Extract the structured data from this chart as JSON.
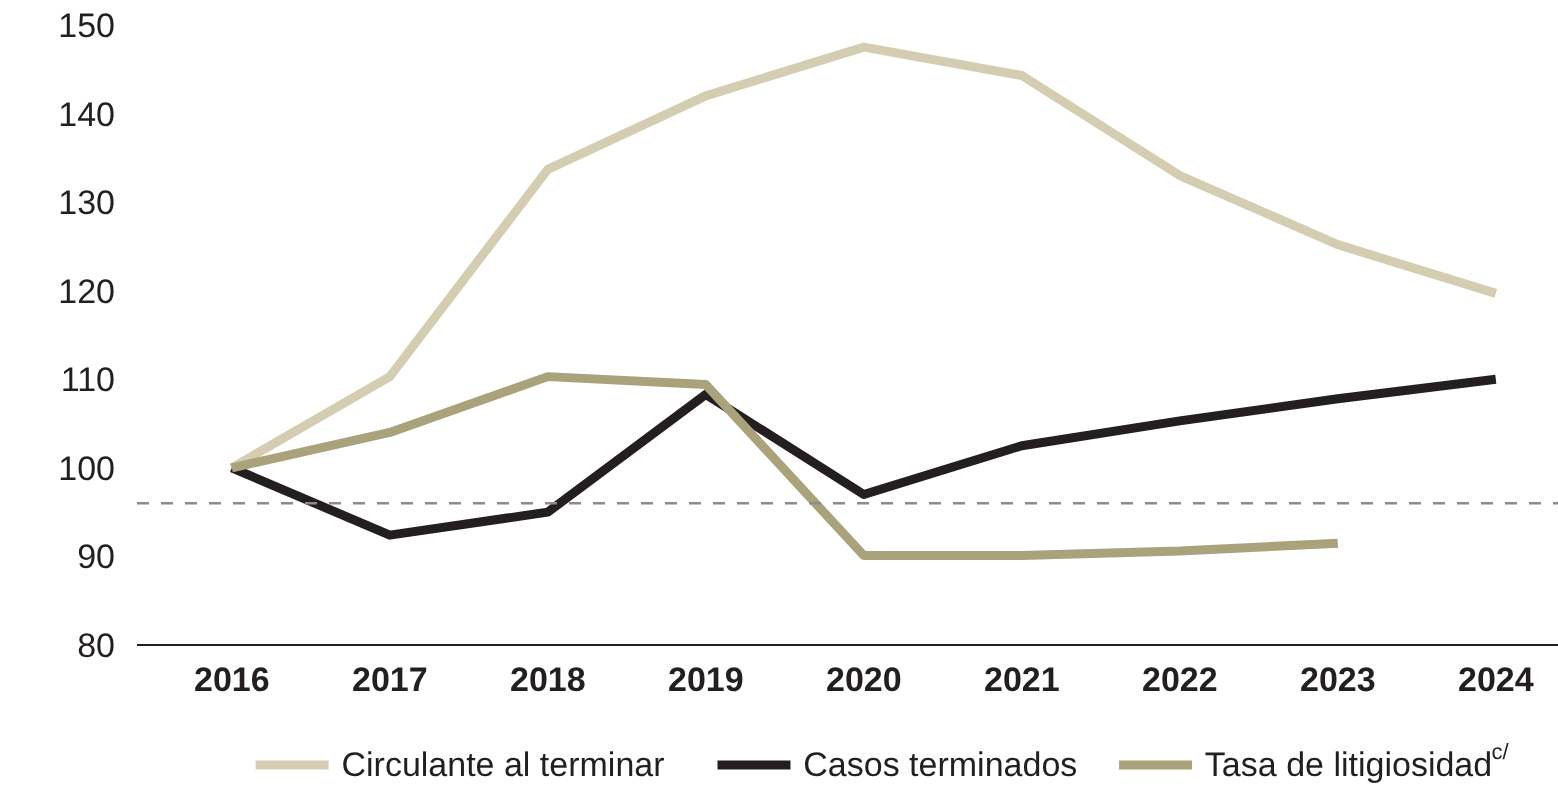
{
  "chart_data": {
    "type": "line",
    "x": [
      2016,
      2017,
      2018,
      2019,
      2020,
      2021,
      2022,
      2023,
      2024
    ],
    "xlim": [
      2015.4,
      2024.4
    ],
    "xticks": [
      2016,
      2017,
      2018,
      2019,
      2020,
      2021,
      2022,
      2023,
      2024
    ],
    "ylim": [
      80,
      150
    ],
    "yticks": [
      80,
      90,
      100,
      110,
      120,
      130,
      140,
      150
    ],
    "series": [
      {
        "name": "Circulante al terminar",
        "color": "#d5cdb2",
        "values": [
          100,
          110.3,
          133.7,
          142,
          147.5,
          144.3,
          133,
          125.2,
          119.7
        ]
      },
      {
        "name": "Casos terminados",
        "color": "#231f20",
        "values": [
          100,
          92.4,
          95,
          108.3,
          97,
          102.5,
          105.3,
          107.8,
          110
        ]
      },
      {
        "name": "Tasa de litigiosidad$^{c/}$",
        "color": "#a9a27a",
        "values": [
          100,
          104,
          110.3,
          109.4,
          90.1,
          90.1,
          90.6,
          91.5,
          null
        ]
      }
    ],
    "ref_lines": [
      {
        "axis": "y",
        "value": 96,
        "color": "#8c8c8c",
        "line_style": "dashed"
      }
    ],
    "grid": false,
    "legend": "bottom",
    "line_style": "solid",
    "marker": "none"
  }
}
